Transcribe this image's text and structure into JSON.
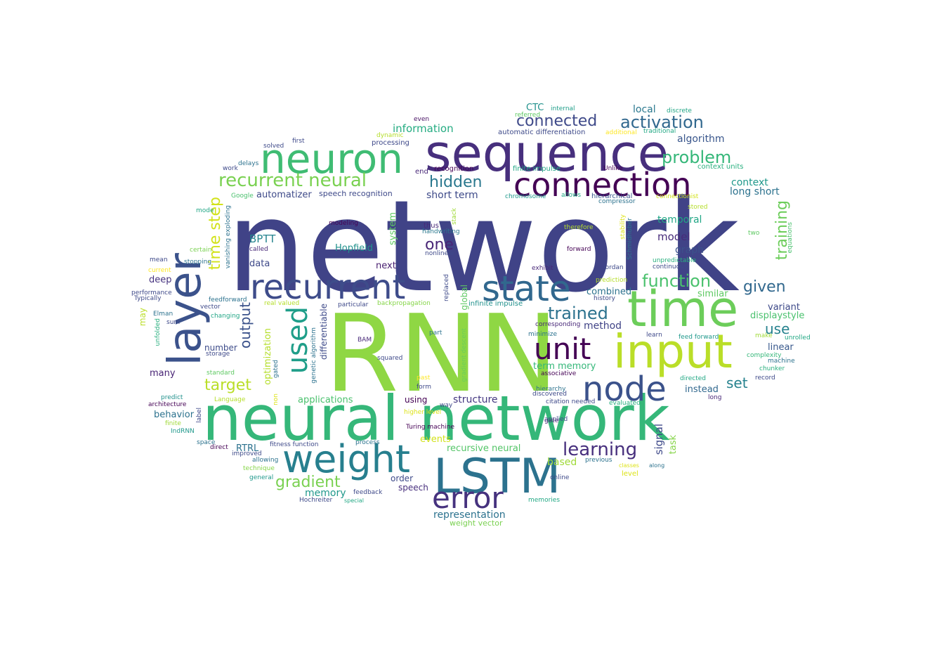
{
  "words": [
    {
      "text": "network",
      "color": "#404387"
    },
    {
      "text": "RNN",
      "color": "#8fd744"
    },
    {
      "text": "neural network",
      "color": "#35b779"
    },
    {
      "text": "sequence",
      "color": "#472f7d"
    },
    {
      "text": "time",
      "color": "#6ccd5a"
    },
    {
      "text": "input",
      "color": "#bade28"
    },
    {
      "text": "layer",
      "color": "#3b528b"
    },
    {
      "text": "neuron",
      "color": "#3fbc73"
    },
    {
      "text": "connection",
      "color": "#440154"
    },
    {
      "text": "recurrent",
      "color": "#3e4c8a"
    },
    {
      "text": "state",
      "color": "#31688e"
    },
    {
      "text": "weight",
      "color": "#277f8e"
    },
    {
      "text": "LSTM",
      "color": "#2c728e"
    },
    {
      "text": "unit",
      "color": "#440154"
    },
    {
      "text": "node",
      "color": "#3b528b"
    },
    {
      "text": "used",
      "color": "#1f9e89"
    },
    {
      "text": "error",
      "color": "#46327e"
    },
    {
      "text": "recurrent neural",
      "color": "#7ad151"
    },
    {
      "text": "activation",
      "color": "#31688e"
    },
    {
      "text": "connected",
      "color": "#3e4989"
    },
    {
      "text": "problem",
      "color": "#35b779"
    },
    {
      "text": "hidden",
      "color": "#2a788e"
    },
    {
      "text": "function",
      "color": "#4ac16d"
    },
    {
      "text": "given",
      "color": "#31688e"
    },
    {
      "text": "trained",
      "color": "#2c728e"
    },
    {
      "text": "learning",
      "color": "#472f7d"
    },
    {
      "text": "gradient",
      "color": "#7ad151"
    },
    {
      "text": "target",
      "color": "#bade28"
    },
    {
      "text": "time step",
      "color": "#d2e21b"
    },
    {
      "text": "output",
      "color": "#3b528b"
    },
    {
      "text": "one",
      "color": "#482576"
    },
    {
      "text": "training",
      "color": "#6ccd5a"
    },
    {
      "text": "use",
      "color": "#26828e"
    },
    {
      "text": "set",
      "color": "#26828e"
    },
    {
      "text": "information",
      "color": "#25ac82"
    },
    {
      "text": "algorithm",
      "color": "#39568c"
    },
    {
      "text": "short term",
      "color": "#3e4a89"
    },
    {
      "text": "local",
      "color": "#2a788e"
    },
    {
      "text": "CTC",
      "color": "#21918c"
    },
    {
      "text": "BPTT",
      "color": "#25848e"
    },
    {
      "text": "model",
      "color": "#472c7a"
    },
    {
      "text": "temporal",
      "color": "#21a685"
    },
    {
      "text": "context",
      "color": "#1f988b"
    },
    {
      "text": "long short",
      "color": "#2c728e"
    },
    {
      "text": "automatizer",
      "color": "#3e4a89"
    },
    {
      "text": "Hopfield",
      "color": "#21918c"
    },
    {
      "text": "graph",
      "color": "#3b528b"
    },
    {
      "text": "next",
      "color": "#481f70"
    },
    {
      "text": "data",
      "color": "#3e4989"
    },
    {
      "text": "deep",
      "color": "#46337f"
    },
    {
      "text": "combined",
      "color": "#2c728e"
    },
    {
      "text": "similar",
      "color": "#5ec962"
    },
    {
      "text": "variant",
      "color": "#3e4a89"
    },
    {
      "text": "displaystyle",
      "color": "#4ac16d"
    },
    {
      "text": "method",
      "color": "#414487"
    },
    {
      "text": "linear",
      "color": "#38588c"
    },
    {
      "text": "term memory",
      "color": "#35b779"
    },
    {
      "text": "instead",
      "color": "#31688e"
    },
    {
      "text": "number",
      "color": "#3e4c8a"
    },
    {
      "text": "many",
      "color": "#482475"
    },
    {
      "text": "behavior",
      "color": "#2c728e"
    },
    {
      "text": "structure",
      "color": "#453882"
    },
    {
      "text": "applications",
      "color": "#4ac16d"
    },
    {
      "text": "using",
      "color": "#440154"
    },
    {
      "text": "events",
      "color": "#d2e21b"
    },
    {
      "text": "recursive neural",
      "color": "#54c568"
    },
    {
      "text": "based",
      "color": "#a0da39"
    },
    {
      "text": "RTRL",
      "color": "#2c728e"
    },
    {
      "text": "memory",
      "color": "#1f988b"
    },
    {
      "text": "order",
      "color": "#3e4a89"
    },
    {
      "text": "speech",
      "color": "#472f7d"
    },
    {
      "text": "representation",
      "color": "#2c728e"
    },
    {
      "text": "weight vector",
      "color": "#7ad151"
    },
    {
      "text": "optimization",
      "color": "#b5de2b"
    },
    {
      "text": "system",
      "color": "#5ec962"
    },
    {
      "text": "differentiable",
      "color": "#3e4a89"
    },
    {
      "text": "signal",
      "color": "#3e4989"
    },
    {
      "text": "task",
      "color": "#86d549"
    },
    {
      "text": "may",
      "color": "#bade28"
    },
    {
      "text": "global",
      "color": "#5ec962"
    },
    {
      "text": "automatic differentiation",
      "color": "#3e4a89"
    },
    {
      "text": "processing",
      "color": "#3e4989"
    },
    {
      "text": "recognition",
      "color": "#440154"
    },
    {
      "text": "speech recognition",
      "color": "#3e4989"
    },
    {
      "text": "finite impulse",
      "color": "#21a685"
    },
    {
      "text": "context units",
      "color": "#2ab07f"
    },
    {
      "text": "end",
      "color": "#482878"
    },
    {
      "text": "Unlike",
      "color": "#440154"
    },
    {
      "text": "hierarchical",
      "color": "#39568c"
    },
    {
      "text": "chromosome",
      "color": "#1f988b"
    },
    {
      "text": "allows",
      "color": "#22a884"
    },
    {
      "text": "compressor",
      "color": "#2c728e"
    },
    {
      "text": "connectionist",
      "color": "#d2e21b"
    },
    {
      "text": "stored",
      "color": "#b5de2b"
    },
    {
      "text": "two",
      "color": "#5ec962"
    },
    {
      "text": "equations",
      "color": "#4ac16d"
    },
    {
      "text": "internal",
      "color": "#1f9e89"
    },
    {
      "text": "discrete",
      "color": "#21a685"
    },
    {
      "text": "referred",
      "color": "#5ec962"
    },
    {
      "text": "additional",
      "color": "#fde725"
    },
    {
      "text": "traditional",
      "color": "#22a884"
    },
    {
      "text": "even",
      "color": "#471063"
    },
    {
      "text": "dynamic",
      "color": "#b5de2b"
    },
    {
      "text": "first",
      "color": "#3e4989"
    },
    {
      "text": "solved",
      "color": "#3e4a89"
    },
    {
      "text": "delays",
      "color": "#2c728e"
    },
    {
      "text": "work",
      "color": "#3e4989"
    },
    {
      "text": "Google",
      "color": "#4ac16d"
    },
    {
      "text": "mode",
      "color": "#21a685"
    },
    {
      "text": "thus",
      "color": "#482878"
    },
    {
      "text": "handwriting",
      "color": "#2a788e"
    },
    {
      "text": "modeling",
      "color": "#440154"
    },
    {
      "text": "stack",
      "color": "#a0da39"
    },
    {
      "text": "therefore",
      "color": "#b5de2b"
    },
    {
      "text": "stability",
      "color": "#dde318"
    },
    {
      "text": "Schmidhuber",
      "color": "#2c728e"
    },
    {
      "text": "called",
      "color": "#482878"
    },
    {
      "text": "nonlinear",
      "color": "#3e4989"
    },
    {
      "text": "forward",
      "color": "#440154"
    },
    {
      "text": "certain",
      "color": "#7ad151"
    },
    {
      "text": "mean",
      "color": "#3e4989"
    },
    {
      "text": "stopping",
      "color": "#2c728e"
    },
    {
      "text": "vanishing exploding",
      "color": "#2c728e"
    },
    {
      "text": "current",
      "color": "#fde725"
    },
    {
      "text": "exhibit",
      "color": "#482878"
    },
    {
      "text": "Jordan",
      "color": "#3e4989"
    },
    {
      "text": "unpredictable",
      "color": "#2ab07f"
    },
    {
      "text": "continuous",
      "color": "#3e4a89"
    },
    {
      "text": "prediction",
      "color": "#b5de2b"
    },
    {
      "text": "history",
      "color": "#3e4989"
    },
    {
      "text": "performance",
      "color": "#3e4989"
    },
    {
      "text": "Typically",
      "color": "#3e4a89"
    },
    {
      "text": "feedforward",
      "color": "#2c728e"
    },
    {
      "text": "vector",
      "color": "#3e4989"
    },
    {
      "text": "real valued",
      "color": "#b5de2b"
    },
    {
      "text": "backpropagation",
      "color": "#86d549"
    },
    {
      "text": "particular",
      "color": "#3e4989"
    },
    {
      "text": "replaced",
      "color": "#3e4a89"
    },
    {
      "text": "infinite impulse",
      "color": "#21918c"
    },
    {
      "text": "Elman",
      "color": "#2c728e"
    },
    {
      "text": "sum",
      "color": "#3e4989"
    },
    {
      "text": "changing",
      "color": "#21a685"
    },
    {
      "text": "unfolded",
      "color": "#2ab07f"
    },
    {
      "text": "corresponding",
      "color": "#482878"
    },
    {
      "text": "minimize",
      "color": "#2c728e"
    },
    {
      "text": "learn",
      "color": "#3e4989"
    },
    {
      "text": "make",
      "color": "#a0da39"
    },
    {
      "text": "unrolled",
      "color": "#22a884"
    },
    {
      "text": "part",
      "color": "#2c728e"
    },
    {
      "text": "feed forward",
      "color": "#1f988b"
    },
    {
      "text": "complexity",
      "color": "#35b779"
    },
    {
      "text": "machine",
      "color": "#2c728e"
    },
    {
      "text": "BAM",
      "color": "#482878"
    },
    {
      "text": "squared",
      "color": "#3e4989"
    },
    {
      "text": "genetic algorithm",
      "color": "#2c728e"
    },
    {
      "text": "gradient descent",
      "color": "#6ccd5a"
    },
    {
      "text": "associative",
      "color": "#440154"
    },
    {
      "text": "chunker",
      "color": "#2ab07f"
    },
    {
      "text": "record",
      "color": "#3e4989"
    },
    {
      "text": "storage",
      "color": "#3e4989"
    },
    {
      "text": "standard",
      "color": "#5ec962"
    },
    {
      "text": "gated",
      "color": "#2c728e"
    },
    {
      "text": "past",
      "color": "#fde725"
    },
    {
      "text": "form",
      "color": "#3e4989"
    },
    {
      "text": "directed",
      "color": "#22a884"
    },
    {
      "text": "hierarchy",
      "color": "#2c728e"
    },
    {
      "text": "discovered",
      "color": "#3e4989"
    },
    {
      "text": "long",
      "color": "#482878"
    },
    {
      "text": "predict",
      "color": "#21918c"
    },
    {
      "text": "Language",
      "color": "#b5de2b"
    },
    {
      "text": "non",
      "color": "#dde318"
    },
    {
      "text": "architecture",
      "color": "#440154"
    },
    {
      "text": "higher level",
      "color": "#dde318"
    },
    {
      "text": "way",
      "color": "#3e4989"
    },
    {
      "text": "citation needed",
      "color": "#3e4989"
    },
    {
      "text": "evaluated",
      "color": "#2ab07f"
    },
    {
      "text": "applied",
      "color": "#3e4a89"
    },
    {
      "text": "label",
      "color": "#3e4989"
    },
    {
      "text": "finite",
      "color": "#a0da39"
    },
    {
      "text": "IndRNN",
      "color": "#1f988b"
    },
    {
      "text": "gate",
      "color": "#482878"
    },
    {
      "text": "Turing machine",
      "color": "#440154"
    },
    {
      "text": "space",
      "color": "#2c728e"
    },
    {
      "text": "direct",
      "color": "#440154"
    },
    {
      "text": "fitness function",
      "color": "#3e4989"
    },
    {
      "text": "process",
      "color": "#2c728e"
    },
    {
      "text": "improved",
      "color": "#3e4a89"
    },
    {
      "text": "allowing",
      "color": "#2c728e"
    },
    {
      "text": "technique",
      "color": "#86d549"
    },
    {
      "text": "general",
      "color": "#1f988b"
    },
    {
      "text": "previous",
      "color": "#2c728e"
    },
    {
      "text": "classes",
      "color": "#dde318"
    },
    {
      "text": "along",
      "color": "#2c728e"
    },
    {
      "text": "level",
      "color": "#dde318"
    },
    {
      "text": "online",
      "color": "#3e4989"
    },
    {
      "text": "feedback",
      "color": "#3e4989"
    },
    {
      "text": "Hochreiter",
      "color": "#3e4a89"
    },
    {
      "text": "special",
      "color": "#22a884"
    },
    {
      "text": "memories",
      "color": "#22a884"
    }
  ]
}
